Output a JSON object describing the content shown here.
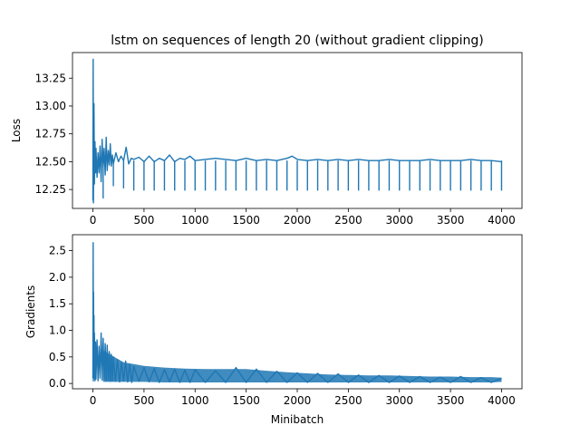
{
  "chart_data": [
    {
      "type": "line",
      "title": "lstm on sequences of length 20 (without gradient clipping)",
      "xlabel": "",
      "ylabel": "Loss",
      "xlim": [
        -200,
        4200
      ],
      "ylim": [
        12.08,
        13.48
      ],
      "x_ticks": [
        0,
        500,
        1000,
        1500,
        2000,
        2500,
        3000,
        3500,
        4000
      ],
      "x_tick_labels": [
        "0",
        "500",
        "1000",
        "1500",
        "2000",
        "2500",
        "3000",
        "3500",
        "4000"
      ],
      "y_ticks": [
        12.25,
        12.5,
        12.75,
        13.0,
        13.25
      ],
      "y_tick_labels": [
        "12.25",
        "12.50",
        "12.75",
        "13.00",
        "13.25"
      ],
      "grid": false,
      "color": "#1f77b4",
      "series": [
        {
          "x": [
            0,
            2,
            5,
            10,
            15,
            20,
            25,
            30,
            40,
            50,
            60,
            70,
            80,
            90,
            100,
            110,
            120,
            130,
            140,
            150,
            160,
            170,
            180,
            190,
            200,
            225,
            250,
            275,
            300,
            325,
            350,
            375,
            400,
            450,
            500,
            550,
            600,
            650,
            700,
            750,
            800,
            850,
            900,
            950,
            1000,
            1100,
            1200,
            1300,
            1400,
            1500,
            1600,
            1700,
            1800,
            1900,
            1950,
            2000,
            2100,
            2200,
            2300,
            2400,
            2500,
            2600,
            2700,
            2800,
            2900,
            3000,
            3100,
            3200,
            3300,
            3400,
            3500,
            3600,
            3700,
            3800,
            3900,
            4000
          ],
          "values": [
            12.15,
            13.42,
            12.13,
            13.02,
            12.3,
            12.68,
            12.4,
            12.62,
            12.36,
            12.58,
            12.4,
            12.64,
            12.32,
            12.7,
            12.45,
            12.62,
            12.38,
            12.72,
            12.42,
            12.6,
            12.47,
            12.66,
            12.46,
            12.56,
            12.48,
            12.58,
            12.5,
            12.55,
            12.51,
            12.63,
            12.48,
            12.53,
            12.52,
            12.54,
            12.5,
            12.55,
            12.5,
            12.53,
            12.51,
            12.56,
            12.5,
            12.53,
            12.52,
            12.55,
            12.51,
            12.52,
            12.53,
            12.52,
            12.51,
            12.53,
            12.51,
            12.52,
            12.51,
            12.53,
            12.55,
            12.52,
            12.51,
            12.52,
            12.51,
            12.52,
            12.51,
            12.52,
            12.51,
            12.51,
            12.52,
            12.51,
            12.51,
            12.51,
            12.52,
            12.51,
            12.51,
            12.51,
            12.52,
            12.51,
            12.51,
            12.5
          ]
        }
      ],
      "dips": {
        "x": [
          100,
          200,
          300,
          400,
          500,
          600,
          700,
          800,
          900,
          1000,
          1100,
          1200,
          1300,
          1400,
          1500,
          1600,
          1700,
          1800,
          1900,
          2000,
          2100,
          2200,
          2300,
          2400,
          2500,
          2600,
          2700,
          2800,
          2900,
          3000,
          3100,
          3200,
          3300,
          3400,
          3500,
          3600,
          3700,
          3800,
          3900,
          4000
        ],
        "values": [
          12.17,
          12.28,
          12.26,
          12.24,
          12.24,
          12.24,
          12.24,
          12.24,
          12.24,
          12.24,
          12.24,
          12.24,
          12.24,
          12.24,
          12.24,
          12.24,
          12.24,
          12.24,
          12.24,
          12.24,
          12.24,
          12.24,
          12.24,
          12.24,
          12.24,
          12.24,
          12.24,
          12.24,
          12.24,
          12.24,
          12.24,
          12.24,
          12.24,
          12.24,
          12.24,
          12.24,
          12.24,
          12.24,
          12.24,
          12.24
        ]
      }
    },
    {
      "type": "line",
      "title": "",
      "xlabel": "Minibatch",
      "ylabel": "Gradients",
      "xlim": [
        -200,
        4200
      ],
      "ylim": [
        -0.1,
        2.8
      ],
      "x_ticks": [
        0,
        500,
        1000,
        1500,
        2000,
        2500,
        3000,
        3500,
        4000
      ],
      "x_tick_labels": [
        "0",
        "500",
        "1000",
        "1500",
        "2000",
        "2500",
        "3000",
        "3500",
        "4000"
      ],
      "y_ticks": [
        0.0,
        0.5,
        1.0,
        1.5,
        2.0,
        2.5
      ],
      "y_tick_labels": [
        "0.0",
        "0.5",
        "1.0",
        "1.5",
        "2.0",
        "2.5"
      ],
      "grid": false,
      "color": "#1f77b4",
      "series": [
        {
          "x": [
            0,
            2,
            4,
            6,
            8,
            10,
            12,
            15,
            20,
            25,
            30,
            40,
            50,
            60,
            70,
            80,
            90,
            100,
            110,
            120,
            130,
            140,
            150,
            160,
            170,
            180,
            190,
            200,
            220,
            240,
            260,
            280,
            300,
            320,
            340,
            360,
            380,
            400,
            450,
            500,
            550,
            600,
            650,
            700,
            750,
            800,
            850,
            900,
            950,
            1000,
            1100,
            1200,
            1300,
            1400,
            1500,
            1600,
            1700,
            1800,
            1900,
            2000,
            2100,
            2200,
            2300,
            2400,
            2500,
            2600,
            2700,
            2800,
            2900,
            3000,
            3100,
            3200,
            3300,
            3400,
            3500,
            3600,
            3700,
            3800,
            3900,
            4000
          ],
          "values": [
            0.1,
            2.65,
            0.05,
            1.72,
            0.2,
            1.28,
            0.1,
            0.95,
            0.05,
            0.78,
            0.08,
            0.82,
            0.05,
            0.7,
            0.1,
            0.95,
            0.06,
            0.85,
            0.08,
            0.75,
            0.05,
            0.72,
            0.06,
            0.6,
            0.04,
            0.55,
            0.05,
            0.5,
            0.04,
            0.45,
            0.03,
            0.4,
            0.05,
            0.42,
            0.03,
            0.36,
            0.02,
            0.32,
            0.04,
            0.3,
            0.03,
            0.28,
            0.02,
            0.26,
            0.03,
            0.27,
            0.02,
            0.25,
            0.02,
            0.26,
            0.02,
            0.24,
            0.02,
            0.3,
            0.02,
            0.27,
            0.02,
            0.23,
            0.02,
            0.2,
            0.02,
            0.19,
            0.02,
            0.18,
            0.02,
            0.16,
            0.02,
            0.15,
            0.02,
            0.14,
            0.02,
            0.13,
            0.02,
            0.12,
            0.02,
            0.13,
            0.02,
            0.11,
            0.02,
            0.1
          ]
        }
      ],
      "band": {
        "x": [
          100,
          300,
          500,
          700,
          900,
          1100,
          1300,
          1500,
          1700,
          1900,
          2100,
          2300,
          2500,
          2700,
          2900,
          3100,
          3300,
          3500,
          3700,
          3900,
          4000
        ],
        "upper": [
          0.62,
          0.4,
          0.33,
          0.3,
          0.28,
          0.27,
          0.27,
          0.27,
          0.24,
          0.21,
          0.19,
          0.17,
          0.16,
          0.15,
          0.15,
          0.14,
          0.13,
          0.13,
          0.12,
          0.12,
          0.11
        ],
        "lower": [
          0.03,
          0.03,
          0.03,
          0.02,
          0.02,
          0.02,
          0.02,
          0.02,
          0.02,
          0.02,
          0.02,
          0.02,
          0.02,
          0.02,
          0.02,
          0.02,
          0.02,
          0.02,
          0.02,
          0.02,
          0.03
        ]
      }
    }
  ]
}
